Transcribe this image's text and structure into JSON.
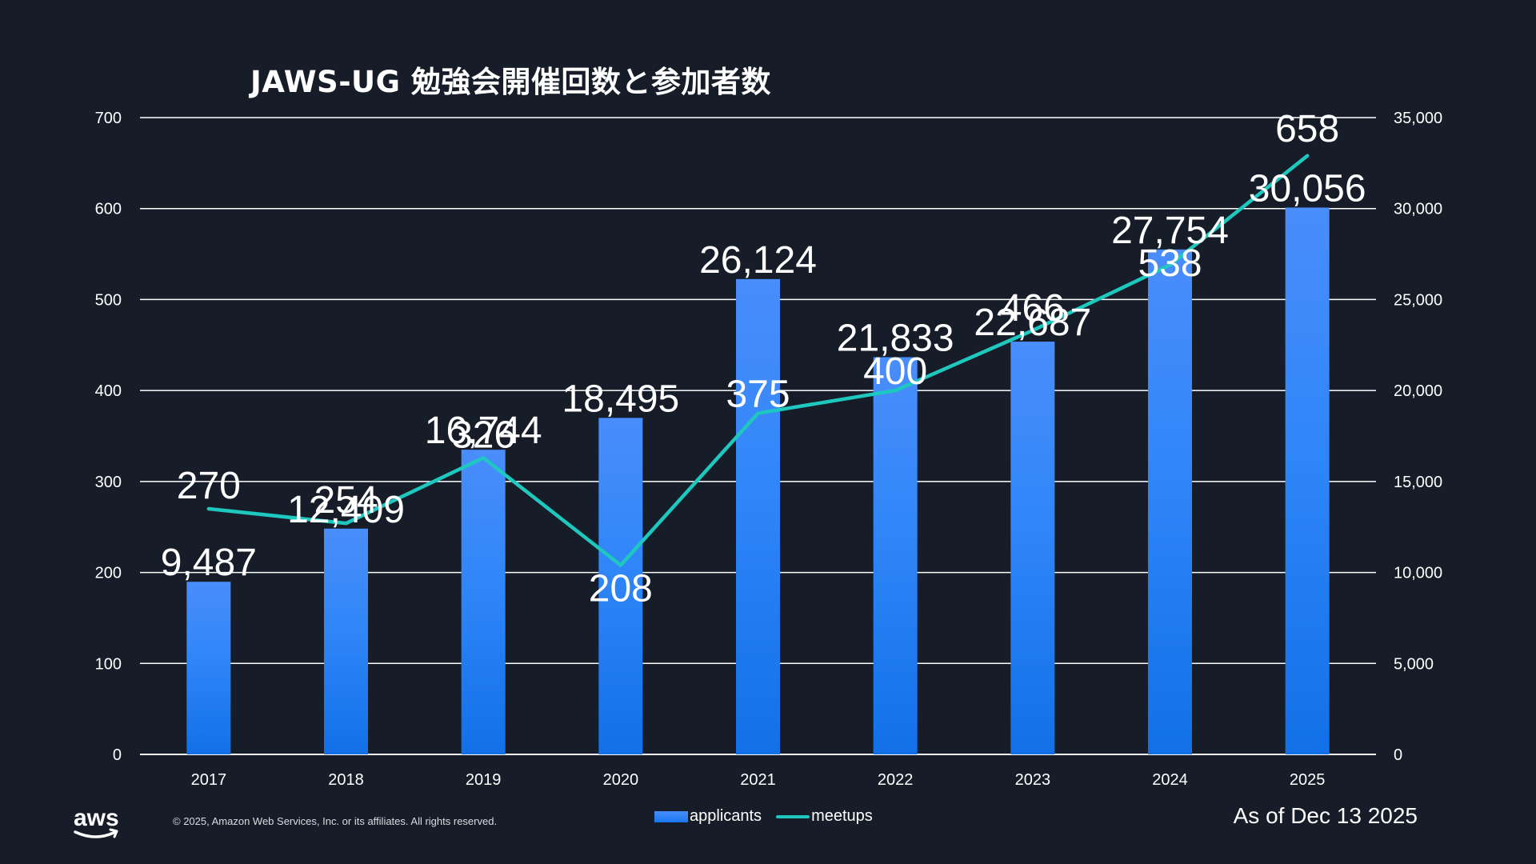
{
  "chart_data": {
    "type": "bar",
    "title": "JAWS-UG 勉強会開催回数と参加者数",
    "categories": [
      "2017",
      "2018",
      "2019",
      "2020",
      "2021",
      "2022",
      "2023",
      "2024",
      "2025"
    ],
    "series": [
      {
        "name": "applicants",
        "type": "bar",
        "axis": "right",
        "values": [
          9487,
          12409,
          16744,
          18495,
          26124,
          21833,
          22687,
          27754,
          30056
        ],
        "labels": [
          "9,487",
          "12,409",
          "16,744",
          "18,495",
          "26,124",
          "21,833",
          "22,687",
          "27,754",
          "30,056"
        ],
        "color": "#1976f0"
      },
      {
        "name": "meetups",
        "type": "line",
        "axis": "left",
        "values": [
          270,
          254,
          326,
          208,
          375,
          400,
          466,
          538,
          658
        ],
        "labels": [
          "270",
          "254",
          "326",
          "208",
          "375",
          "400",
          "466",
          "538",
          "658"
        ],
        "color": "#1ec8be"
      }
    ],
    "y_left": {
      "range": [
        0,
        700
      ],
      "ticks": [
        0,
        100,
        200,
        300,
        400,
        500,
        600,
        700
      ],
      "tick_labels": [
        "0",
        "100",
        "200",
        "300",
        "400",
        "500",
        "600",
        "700"
      ]
    },
    "y_right": {
      "range": [
        0,
        35000
      ],
      "ticks": [
        0,
        5000,
        10000,
        15000,
        20000,
        25000,
        30000,
        35000
      ],
      "tick_labels": [
        "0",
        "5,000",
        "10,000",
        "15,000",
        "20,000",
        "25,000",
        "30,000",
        "35,000"
      ]
    },
    "grid": true,
    "legend_position": "bottom-center"
  },
  "footer": {
    "logo_text": "aws",
    "copyright": "© 2025, Amazon Web Services, Inc. or its affiliates. All rights reserved.",
    "as_of": "As of Dec 13 2025"
  },
  "colors": {
    "background": "#161d28",
    "bar_top": "#4a8dfc",
    "bar_bottom": "#1976f0",
    "line": "#1ec8be",
    "grid": "#ffffff",
    "text": "#ffffff"
  }
}
